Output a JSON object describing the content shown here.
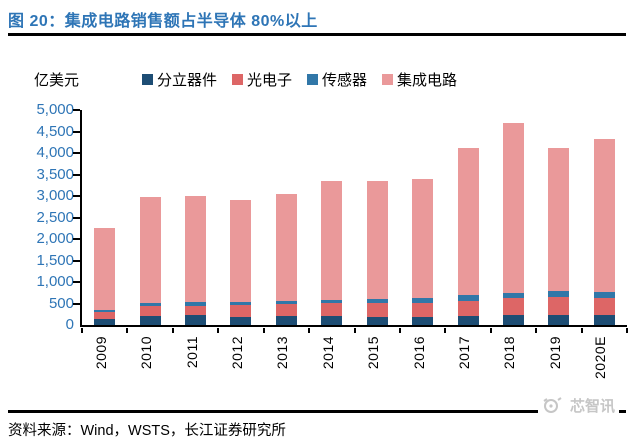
{
  "header": {
    "title": "图 20：集成电路销售额占半导体 80%以上",
    "title_color": "#2e75b6"
  },
  "chart": {
    "unit_label": "亿美元"
  },
  "chart_data": {
    "type": "bar",
    "stacked": true,
    "title": "图 20：集成电路销售额占半导体 80%以上",
    "unit": "亿美元",
    "categories": [
      "2009",
      "2010",
      "2011",
      "2012",
      "2013",
      "2014",
      "2015",
      "2016",
      "2017",
      "2018",
      "2019",
      "2020E"
    ],
    "series": [
      {
        "name": "分立器件",
        "color": "#1d4d74",
        "values": [
          136,
          203,
          223,
          196,
          202,
          208,
          189,
          194,
          216,
          241,
          239,
          231
        ]
      },
      {
        "name": "光电子",
        "color": "#dd6666",
        "values": [
          165,
          232,
          231,
          262,
          276,
          299,
          333,
          319,
          348,
          380,
          416,
          404
        ]
      },
      {
        "name": "传感器",
        "color": "#3177a8",
        "values": [
          45,
          71,
          82,
          80,
          80,
          85,
          88,
          108,
          126,
          134,
          135,
          133
        ]
      },
      {
        "name": "集成电路",
        "color": "#ea999a",
        "values": [
          1917,
          2477,
          2459,
          2378,
          2498,
          2766,
          2742,
          2768,
          3432,
          3933,
          3334,
          3562
        ]
      }
    ],
    "totals": [
      2263,
      2983,
      2995,
      2916,
      3056,
      3358,
      3352,
      3389,
      4122,
      4688,
      4124,
      4330
    ],
    "ylim": [
      0,
      5000
    ],
    "ytick_step": 500,
    "ytick_labels": [
      "5,000",
      "4,500",
      "4,000",
      "3,500",
      "3,000",
      "2,500",
      "2,000",
      "1,500",
      "1,000",
      "500",
      "0"
    ],
    "legend_position": "top",
    "grid": false
  },
  "footer": {
    "source": "资料来源：Wind，WSTS，长江证券研究所",
    "watermark": "芯智讯"
  }
}
